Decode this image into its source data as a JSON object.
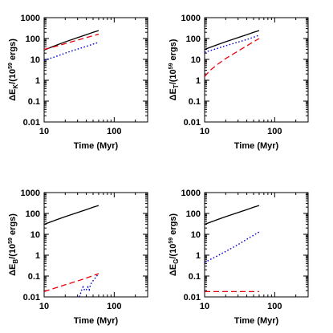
{
  "chart_data": [
    {
      "type": "line",
      "xlabel": "Time (Myr)",
      "ylabel": {
        "pre": "ΔE",
        "sub": "K",
        "post": "/(10",
        "sup": "59",
        "tail": " ergs)"
      },
      "xscale": "log",
      "yscale": "log",
      "xlim": [
        10,
        300
      ],
      "ylim": [
        0.01,
        1000
      ],
      "xticks": [
        "10",
        "100"
      ],
      "yticks": [
        "0.01",
        "0.1",
        "1",
        "10",
        "100",
        "1000"
      ],
      "series": [
        {
          "color": "#000000",
          "dash": "solid",
          "x": [
            10,
            15,
            20,
            30,
            40,
            50,
            60
          ],
          "y": [
            28,
            48,
            69,
            110,
            153,
            198,
            240
          ]
        },
        {
          "color": "#e8000b",
          "dash": "dashed",
          "x": [
            10,
            15,
            20,
            30,
            40,
            50,
            60
          ],
          "y": [
            30,
            43,
            57,
            84,
            110,
            137,
            160
          ]
        },
        {
          "color": "#0000d0",
          "dash": "dotted",
          "x": [
            10,
            15,
            20,
            30,
            40,
            50,
            60
          ],
          "y": [
            9,
            14,
            20,
            31,
            42,
            54,
            65
          ]
        }
      ]
    },
    {
      "type": "line",
      "xlabel": "Time (Myr)",
      "ylabel": {
        "pre": "ΔE",
        "sub": "T",
        "post": "/(10",
        "sup": "59",
        "tail": " ergs)"
      },
      "xscale": "log",
      "yscale": "log",
      "xlim": [
        10,
        300
      ],
      "ylim": [
        0.01,
        1000
      ],
      "xticks": [
        "10",
        "100"
      ],
      "yticks": [
        "0.01",
        "0.1",
        "1",
        "10",
        "100",
        "1000"
      ],
      "series": [
        {
          "color": "#000000",
          "dash": "solid",
          "x": [
            10,
            15,
            20,
            30,
            40,
            50,
            60
          ],
          "y": [
            30,
            50,
            70,
            110,
            153,
            198,
            240
          ]
        },
        {
          "color": "#e8000b",
          "dash": "dashed",
          "x": [
            10,
            12,
            15,
            20,
            30,
            40,
            50,
            60
          ],
          "y": [
            1.5,
            3,
            5.5,
            11,
            25,
            45,
            70,
            100
          ]
        },
        {
          "color": "#0000d0",
          "dash": "dotted",
          "x": [
            10,
            15,
            20,
            30,
            40,
            50,
            60
          ],
          "y": [
            22,
            33,
            45,
            67,
            90,
            115,
            145
          ]
        }
      ]
    },
    {
      "type": "line",
      "xlabel": "Time (Myr)",
      "ylabel": {
        "pre": "ΔE",
        "sub": "B",
        "post": "/(10",
        "sup": "59",
        "tail": " ergs)"
      },
      "xscale": "log",
      "yscale": "log",
      "xlim": [
        10,
        300
      ],
      "ylim": [
        0.01,
        1000
      ],
      "xticks": [
        "10",
        "100"
      ],
      "yticks": [
        "0.01",
        "0.1",
        "1",
        "10",
        "100",
        "1000"
      ],
      "series": [
        {
          "color": "#000000",
          "dash": "solid",
          "x": [
            10,
            15,
            20,
            30,
            40,
            50,
            60
          ],
          "y": [
            30,
            50,
            70,
            110,
            153,
            198,
            240
          ]
        },
        {
          "color": "#e8000b",
          "dash": "dashed",
          "x": [
            10,
            15,
            20,
            30,
            40,
            50,
            60
          ],
          "y": [
            0.018,
            0.028,
            0.038,
            0.058,
            0.08,
            0.105,
            0.13
          ]
        },
        {
          "color": "#0000d0",
          "dash": "dotted",
          "x": [
            32,
            34,
            36,
            38,
            40,
            42,
            44,
            46,
            50,
            55,
            60
          ],
          "y": [
            0.01,
            0.02,
            0.03,
            0.02,
            0.022,
            0.03,
            0.022,
            0.04,
            0.06,
            0.09,
            0.13
          ]
        }
      ]
    },
    {
      "type": "line",
      "xlabel": "Time (Myr)",
      "ylabel": {
        "pre": "ΔE",
        "sub": "G",
        "post": "/(10",
        "sup": "59",
        "tail": " ergs)"
      },
      "xscale": "log",
      "yscale": "log",
      "xlim": [
        10,
        300
      ],
      "ylim": [
        0.01,
        1000
      ],
      "xticks": [
        "10",
        "100"
      ],
      "yticks": [
        "0.01",
        "0.1",
        "1",
        "10",
        "100",
        "1000"
      ],
      "series": [
        {
          "color": "#000000",
          "dash": "solid",
          "x": [
            10,
            15,
            20,
            30,
            40,
            50,
            60
          ],
          "y": [
            30,
            50,
            70,
            110,
            153,
            198,
            240
          ]
        },
        {
          "color": "#e8000b",
          "dash": "dashed",
          "x": [
            10,
            60
          ],
          "y": [
            0.018,
            0.018
          ]
        },
        {
          "color": "#0000d0",
          "dash": "dotted",
          "x": [
            10,
            15,
            20,
            30,
            40,
            50,
            60
          ],
          "y": [
            0.45,
            0.9,
            1.5,
            3.2,
            5.8,
            9,
            13
          ]
        }
      ]
    }
  ]
}
